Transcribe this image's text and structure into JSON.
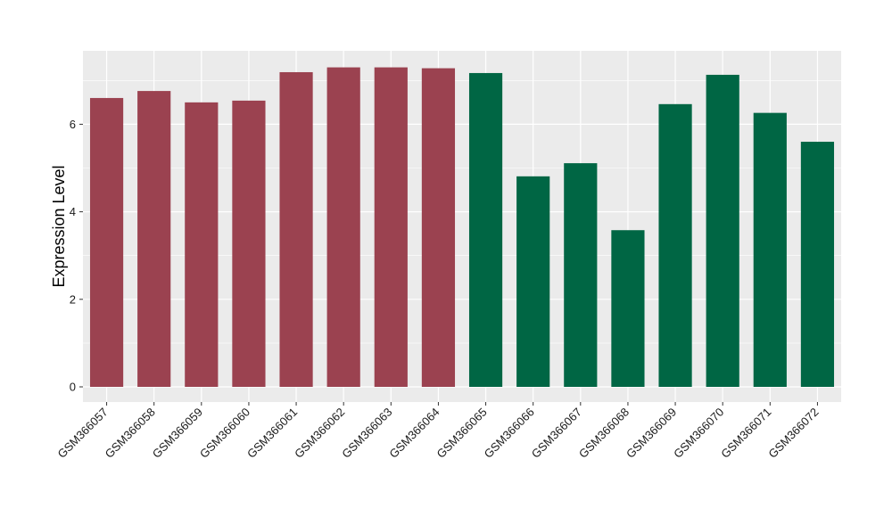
{
  "chart_data": {
    "type": "bar",
    "title": "",
    "xlabel": "",
    "ylabel": "Expression Level",
    "ylim": [
      0,
      7.7
    ],
    "y_ticks": [
      0,
      2,
      4,
      6
    ],
    "grid": true,
    "categories": [
      "GSM366057",
      "GSM366058",
      "GSM366059",
      "GSM366060",
      "GSM366061",
      "GSM366062",
      "GSM366063",
      "GSM366064",
      "GSM366065",
      "GSM366066",
      "GSM366067",
      "GSM366068",
      "GSM366069",
      "GSM366070",
      "GSM366071",
      "GSM366072"
    ],
    "values": [
      6.6,
      6.76,
      6.5,
      6.54,
      7.19,
      7.3,
      7.3,
      7.28,
      7.17,
      4.81,
      5.11,
      3.58,
      6.46,
      7.13,
      6.26,
      5.6
    ],
    "bar_colors": [
      "#9b4250",
      "#9b4250",
      "#9b4250",
      "#9b4250",
      "#9b4250",
      "#9b4250",
      "#9b4250",
      "#9b4250",
      "#006644",
      "#006644",
      "#006644",
      "#006644",
      "#006644",
      "#006644",
      "#006644",
      "#006644"
    ],
    "panel_background": "#ebebeb",
    "grid_color": "#ffffff"
  }
}
